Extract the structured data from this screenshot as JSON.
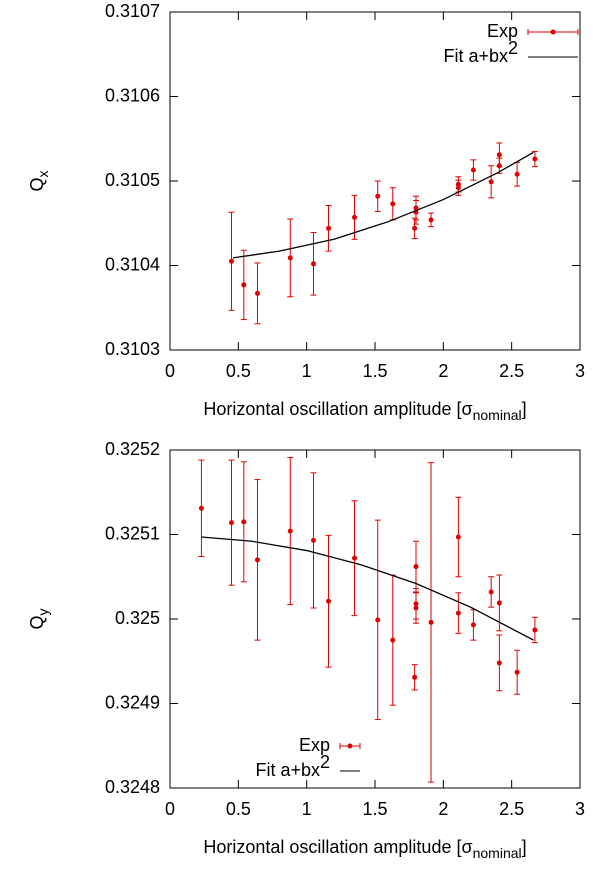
{
  "chart_data": [
    {
      "type": "errorbar",
      "ylabel": {
        "text": "Q",
        "sub": "x"
      },
      "xlabel": {
        "text": "Horizontal oscillation amplitude [σ",
        "sub": "nominal",
        "end": "]"
      },
      "xlim": [
        0,
        3
      ],
      "xticks": [
        0,
        0.5,
        1,
        1.5,
        2,
        2.5,
        3
      ],
      "ylim": [
        0.3103,
        0.3107
      ],
      "yticks": [
        0.3103,
        0.3104,
        0.3105,
        0.3106,
        0.3107
      ],
      "legend": "upper right",
      "series": [
        {
          "name": "Exp",
          "color": "#e00000",
          "x": [
            0.45,
            0.54,
            0.64,
            0.88,
            1.05,
            1.16,
            1.35,
            1.52,
            1.63,
            1.79,
            1.8,
            1.8,
            1.91,
            2.11,
            2.11,
            2.22,
            2.35,
            2.41,
            2.41,
            2.54,
            2.67
          ],
          "values": [
            0.310405,
            0.310377,
            0.310367,
            0.310409,
            0.310402,
            0.310444,
            0.310457,
            0.310482,
            0.310473,
            0.310444,
            0.310463,
            0.310468,
            0.310454,
            0.310492,
            0.310496,
            0.310513,
            0.310499,
            0.310531,
            0.310518,
            0.310508,
            0.310526
          ],
          "errors": [
            5.8e-05,
            4.1e-05,
            3.6e-05,
            4.6e-05,
            3.7e-05,
            2.7e-05,
            2.6e-05,
            1.8e-05,
            1.9e-05,
            1.2e-05,
            1.4e-05,
            1.4e-05,
            8e-06,
            9e-06,
            9e-06,
            1.2e-05,
            1.9e-05,
            1.4e-05,
            9e-06,
            1.4e-05,
            9e-06
          ]
        },
        {
          "name": "Fit a+bx",
          "name_sup": "2",
          "color": "#000000",
          "x": [
            0.46,
            0.8,
            1.2,
            1.6,
            2.0,
            2.4,
            2.66
          ],
          "values": [
            0.310409,
            0.310417,
            0.310431,
            0.310452,
            0.310478,
            0.31051,
            0.310534
          ]
        }
      ]
    },
    {
      "type": "errorbar",
      "ylabel": {
        "text": "Q",
        "sub": "y"
      },
      "xlabel": {
        "text": "Horizontal oscillation amplitude [σ",
        "sub": "nominal",
        "end": "]"
      },
      "xlim": [
        0,
        3
      ],
      "xticks": [
        0,
        0.5,
        1,
        1.5,
        2,
        2.5,
        3
      ],
      "ylim": [
        0.3248,
        0.3252
      ],
      "yticks": [
        0.3248,
        0.3249,
        0.325,
        0.3251,
        0.3252
      ],
      "legend": "lower left",
      "series": [
        {
          "name": "Exp",
          "color": "#e00000",
          "x": [
            0.23,
            0.45,
            0.54,
            0.64,
            0.88,
            1.05,
            1.16,
            1.35,
            1.52,
            1.63,
            1.79,
            1.8,
            1.8,
            1.8,
            1.91,
            2.11,
            2.11,
            2.22,
            2.35,
            2.41,
            2.41,
            2.54,
            2.67
          ],
          "values": [
            0.325131,
            0.325114,
            0.325115,
            0.32507,
            0.325104,
            0.325093,
            0.325021,
            0.325072,
            0.324999,
            0.324975,
            0.324931,
            0.325062,
            0.325018,
            0.325013,
            0.324996,
            0.325097,
            0.325007,
            0.324993,
            0.325032,
            0.325019,
            0.324948,
            0.324937,
            0.324987
          ],
          "errors": [
            5.7e-05,
            7.4e-05,
            7.1e-05,
            9.5e-05,
            8.7e-05,
            8e-05,
            7.8e-05,
            6.8e-05,
            0.000118,
            7.7e-05,
            1.5e-05,
            3e-05,
            1.8e-05,
            1.8e-05,
            0.000189,
            4.7e-05,
            2.4e-05,
            1.8e-05,
            1.8e-05,
            3.3e-05,
            3.3e-05,
            2.6e-05,
            1.5e-05
          ]
        },
        {
          "name": "Fit a+bx",
          "name_sup": "2",
          "color": "#000000",
          "x": [
            0.23,
            0.6,
            1.0,
            1.4,
            1.8,
            2.2,
            2.66
          ],
          "values": [
            0.325097,
            0.325092,
            0.325081,
            0.325064,
            0.325042,
            0.325014,
            0.324975
          ]
        }
      ]
    }
  ]
}
